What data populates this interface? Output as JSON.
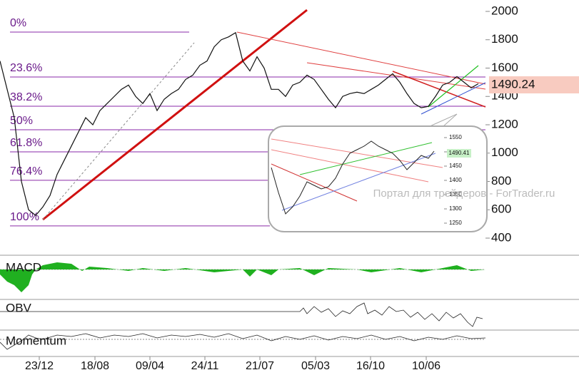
{
  "chart_data": {
    "type": "line",
    "x": [
      0,
      1,
      2,
      3,
      4,
      5,
      6,
      7,
      8,
      9,
      10,
      11,
      12,
      13,
      14,
      15,
      16,
      17,
      18,
      19,
      20,
      21,
      22,
      23,
      24,
      25,
      26,
      27,
      28,
      29,
      30,
      31,
      32,
      33,
      34,
      35,
      36,
      37,
      38,
      39,
      40,
      41,
      42,
      43,
      44,
      45,
      46,
      47,
      48,
      49,
      50,
      51,
      52,
      53,
      54,
      55,
      56,
      57,
      58,
      59,
      60,
      61,
      62,
      63,
      64,
      65,
      66,
      67
    ],
    "series": [
      {
        "color": "#111111",
        "values": [
          1650,
          1450,
          1250,
          800,
          600,
          560,
          620,
          700,
          850,
          950,
          1050,
          1150,
          1250,
          1200,
          1300,
          1350,
          1400,
          1450,
          1480,
          1400,
          1350,
          1420,
          1300,
          1380,
          1420,
          1450,
          1520,
          1550,
          1620,
          1650,
          1750,
          1800,
          1820,
          1850,
          1650,
          1580,
          1680,
          1600,
          1450,
          1450,
          1400,
          1480,
          1500,
          1550,
          1520,
          1450,
          1380,
          1320,
          1400,
          1420,
          1430,
          1420,
          1450,
          1480,
          1520,
          1560,
          1500,
          1420,
          1350,
          1320,
          1330,
          1400,
          1480,
          1500,
          1540,
          1500,
          1460,
          1490
        ]
      }
    ],
    "xlim": [
      0,
      68
    ],
    "xticks": [
      {
        "value": 5.5,
        "label": "23/12"
      },
      {
        "value": 13.3,
        "label": "18/08"
      },
      {
        "value": 21,
        "label": "09/04"
      },
      {
        "value": 28.7,
        "label": "24/11"
      },
      {
        "value": 36.4,
        "label": "21/07"
      },
      {
        "value": 44.2,
        "label": "05/03"
      },
      {
        "value": 51.9,
        "label": "16/10"
      },
      {
        "value": 59.7,
        "label": "10/06"
      }
    ],
    "ylim": [
      400,
      2000
    ],
    "yticks": [
      400,
      600,
      800,
      1000,
      1200,
      1400,
      1600,
      1800,
      2000
    ],
    "fib_levels": [
      {
        "label": "0%",
        "value": 1854
      },
      {
        "label": "23.6%",
        "value": 1537
      },
      {
        "label": "38.2%",
        "value": 1331
      },
      {
        "label": "50%",
        "value": 1165
      },
      {
        "label": "61.8%",
        "value": 1009
      },
      {
        "label": "76.4%",
        "value": 808
      },
      {
        "label": "100%",
        "value": 486
      }
    ],
    "fib_color": "#8a2aa8",
    "last_label": "1490.24",
    "panels": [
      "MACD",
      "OBV",
      "Momentum"
    ],
    "watermark": "Портал для трейдеров - ForTrader.ru",
    "inset": {
      "last_label": "1490.41",
      "ylim": [
        1250,
        1550
      ],
      "yticks": [
        1250,
        1300,
        1350,
        1400,
        1450,
        1500,
        1550
      ]
    }
  }
}
